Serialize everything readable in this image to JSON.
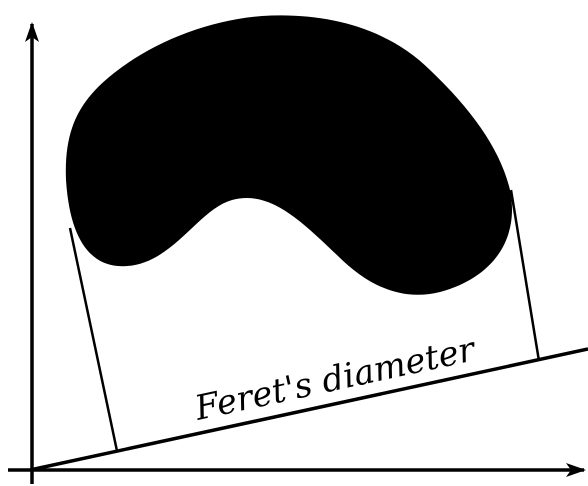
{
  "diagram": {
    "label": "Feret's diameter",
    "colors": {
      "ink": "#000000",
      "background": "#ffffff"
    }
  }
}
